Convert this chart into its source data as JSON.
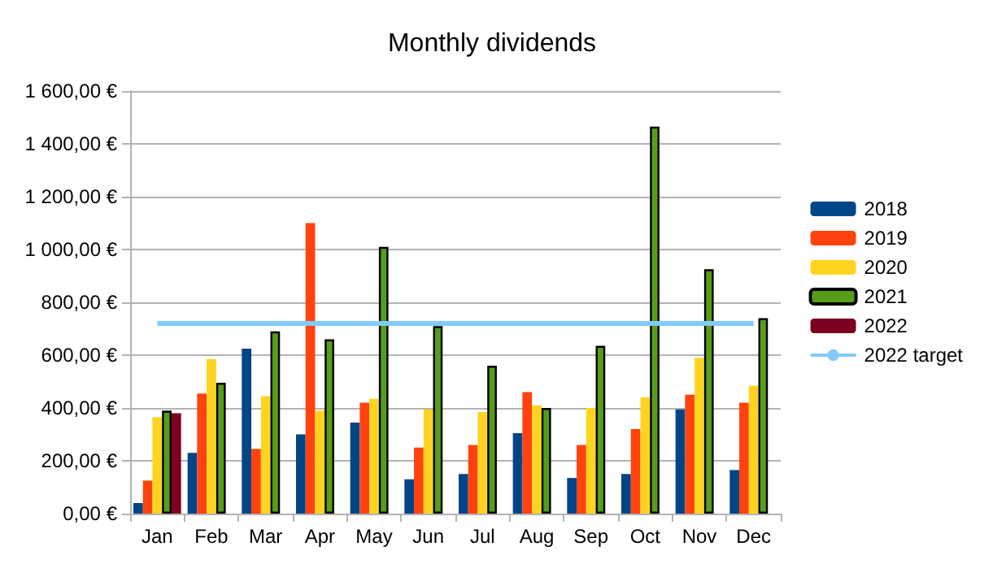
{
  "chart_data": {
    "type": "bar",
    "title": "Monthly dividends",
    "categories": [
      "Jan",
      "Feb",
      "Mar",
      "Apr",
      "May",
      "Jun",
      "Jul",
      "Aug",
      "Sep",
      "Oct",
      "Nov",
      "Dec"
    ],
    "series": [
      {
        "name": "2018",
        "color": "#004586",
        "values": [
          40,
          230,
          625,
          300,
          345,
          130,
          150,
          305,
          135,
          150,
          395,
          165
        ]
      },
      {
        "name": "2019",
        "color": "#ff420e",
        "values": [
          125,
          455,
          245,
          1100,
          420,
          250,
          260,
          460,
          260,
          320,
          450,
          420
        ]
      },
      {
        "name": "2020",
        "color": "#ffd320",
        "values": [
          365,
          585,
          445,
          390,
          435,
          395,
          385,
          410,
          400,
          440,
          590,
          485
        ]
      },
      {
        "name": "2021",
        "color": "#579d1c",
        "values": [
          390,
          495,
          690,
          660,
          1010,
          710,
          560,
          400,
          635,
          1465,
          925,
          740
        ]
      },
      {
        "name": "2022",
        "color": "#7e0021",
        "values": [
          380,
          null,
          null,
          null,
          null,
          null,
          null,
          null,
          null,
          null,
          null,
          null
        ]
      },
      {
        "name": "2022 target",
        "type": "line",
        "color": "#83caff",
        "values": [
          720,
          720,
          720,
          720,
          720,
          720,
          720,
          720,
          720,
          720,
          720,
          720
        ]
      }
    ],
    "ylim": [
      0,
      1600
    ],
    "yticks": [
      {
        "value": 0,
        "label": "0,00 €"
      },
      {
        "value": 200,
        "label": "200,00 €"
      },
      {
        "value": 400,
        "label": "400,00 €"
      },
      {
        "value": 600,
        "label": "600,00 €"
      },
      {
        "value": 800,
        "label": "800,00 €"
      },
      {
        "value": 1000,
        "label": "1 000,00 €"
      },
      {
        "value": 1200,
        "label": "1 200,00 €"
      },
      {
        "value": 1400,
        "label": "1 400,00 €"
      },
      {
        "value": 1600,
        "label": "1 600,00 €"
      }
    ],
    "grid": "y",
    "legend": "right",
    "marker": "none"
  }
}
